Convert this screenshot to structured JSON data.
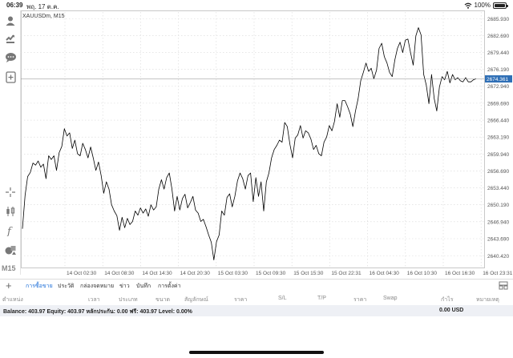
{
  "status": {
    "time": "06:39",
    "date": "พฤ. 17 ต.ค.",
    "battery": "100%",
    "battery_level": 1.0
  },
  "chart": {
    "symbol": "XAUUSDm, M15",
    "current_price": "2674.361",
    "colors": {
      "line": "#000000",
      "grid": "#d7d7d7",
      "price_tag": "#2f6fb6",
      "price_line": "#8c8c8c"
    }
  },
  "chart_data": {
    "type": "line",
    "title": "XAUUSDm, M15",
    "xlabel": "",
    "ylabel": "",
    "x_ticks": [
      "14 Oct 02:30",
      "14 Oct 08:30",
      "14 Oct 14:30",
      "14 Oct 20:30",
      "15 Oct 03:30",
      "15 Oct 09:30",
      "15 Oct 15:30",
      "15 Oct 22:31",
      "16 Oct 04:30",
      "16 Oct 10:30",
      "16 Oct 16:30",
      "16 Oct 23:31"
    ],
    "y_ticks": [
      "2640.420",
      "2643.690",
      "2646.940",
      "2650.190",
      "2653.440",
      "2656.690",
      "2659.940",
      "2663.190",
      "2666.440",
      "2669.690",
      "2672.940",
      "2676.190",
      "2679.440",
      "2682.690",
      "2685.930"
    ],
    "ylim": [
      2638.0,
      2687.2
    ],
    "current_price": 2674.361,
    "grid": true,
    "series": [
      {
        "values": [
          2645.6,
          2652.0,
          2655.6,
          2656.4,
          2658.2,
          2657.8,
          2658.6,
          2657.4,
          2658.0,
          2655.2,
          2659.6,
          2658.9,
          2659.6,
          2656.8,
          2660.2,
          2661.4,
          2664.8,
          2663.4,
          2664.0,
          2661.0,
          2662.6,
          2660.0,
          2659.6,
          2662.0,
          2660.8,
          2659.2,
          2661.3,
          2659.2,
          2656.8,
          2658.4,
          2655.8,
          2652.4,
          2654.6,
          2653.2,
          2650.2,
          2649.0,
          2648.1,
          2645.3,
          2647.8,
          2645.8,
          2647.6,
          2646.4,
          2647.0,
          2649.0,
          2648.2,
          2649.6,
          2648.6,
          2649.4,
          2648.0,
          2650.2,
          2649.2,
          2649.8,
          2653.2,
          2655.0,
          2653.2,
          2655.4,
          2656.3,
          2653.2,
          2649.0,
          2651.8,
          2649.2,
          2651.4,
          2652.2,
          2649.6,
          2650.6,
          2651.8,
          2649.2,
          2648.6,
          2647.0,
          2647.4,
          2646.0,
          2644.4,
          2643.0,
          2639.6,
          2643.1,
          2644.4,
          2649.0,
          2648.2,
          2651.6,
          2652.3,
          2649.8,
          2651.8,
          2654.8,
          2656.3,
          2655.2,
          2653.2,
          2655.8,
          2656.3,
          2650.8,
          2655.4,
          2651.8,
          2654.6,
          2649.0,
          2654.6,
          2656.3,
          2659.2,
          2660.8,
          2661.6,
          2662.6,
          2662.2,
          2666.0,
          2665.2,
          2661.8,
          2659.2,
          2663.0,
          2663.6,
          2665.4,
          2663.0,
          2664.4,
          2664.0,
          2662.8,
          2660.8,
          2661.6,
          2660.0,
          2659.6,
          2662.2,
          2663.2,
          2665.4,
          2664.4,
          2666.2,
          2669.6,
          2667.0,
          2670.2,
          2670.2,
          2669.0,
          2667.6,
          2665.2,
          2668.2,
          2670.6,
          2674.0,
          2675.6,
          2677.4,
          2675.8,
          2676.4,
          2674.4,
          2676.0,
          2680.2,
          2681.2,
          2678.6,
          2677.4,
          2675.6,
          2674.8,
          2678.0,
          2680.2,
          2681.4,
          2679.4,
          2681.8,
          2682.0,
          2679.4,
          2677.0,
          2682.6,
          2684.2,
          2682.8,
          2675.2,
          2673.2,
          2669.6,
          2675.2,
          2670.6,
          2668.2,
          2672.8,
          2674.8,
          2674.2,
          2675.8,
          2673.6,
          2675.2,
          2674.2,
          2674.6,
          2674.0,
          2673.8,
          2674.6,
          2673.8,
          2673.8,
          2674.2,
          2674.4
        ]
      }
    ]
  },
  "left_toolbar": {
    "icons": [
      "account-icon",
      "trade-icon",
      "chat-icon",
      "add-object-icon",
      "crosshair-icon",
      "chart-type-icon",
      "indicators-icon",
      "objects-icon"
    ],
    "timeframe": "M15"
  },
  "bottom": {
    "tabs": [
      "การซื้อขาย",
      "ประวัติ",
      "กล่องจดหมาย",
      "ข่าว",
      "บันทึก",
      "การตั้งค่า"
    ],
    "active_tab": 0,
    "columns": [
      "ตำแหน่ง",
      "เวลา",
      "ประเภท",
      "ขนาด",
      "สัญลักษณ์",
      "ราคา",
      "S/L",
      "T/P",
      "ราคา",
      "Swap",
      "กำไร",
      "หมายเหตุ"
    ],
    "balance_text": "Balance: 403.97 Equity: 403.97 หลักประกัน: 0.00 ฟรี: 403.97 Level: 0.00%",
    "profit_total": "0.00  USD"
  }
}
